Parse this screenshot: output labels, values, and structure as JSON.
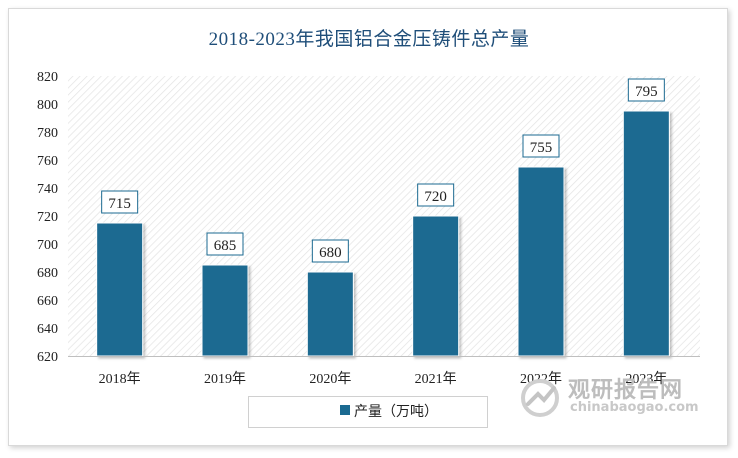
{
  "chart_data": {
    "type": "bar",
    "title": "2018-2023年我国铝合金压铸件总产量",
    "categories": [
      "2018年",
      "2019年",
      "2020年",
      "2021年",
      "2022年",
      "2023年"
    ],
    "series": [
      {
        "name": "产量（万吨）",
        "values": [
          715,
          685,
          680,
          720,
          755,
          795
        ]
      }
    ],
    "data_labels": [
      "715",
      "685",
      "680",
      "720",
      "755",
      "795"
    ],
    "y_ticks": [
      "620",
      "640",
      "660",
      "680",
      "700",
      "720",
      "740",
      "760",
      "780",
      "800",
      "820"
    ],
    "ylim": [
      620,
      820
    ],
    "grid": false,
    "legend_position": "bottom",
    "bar_color": "#1b6a91"
  },
  "watermark": {
    "name": "观研报告网",
    "url": "chinabaogao.com"
  }
}
